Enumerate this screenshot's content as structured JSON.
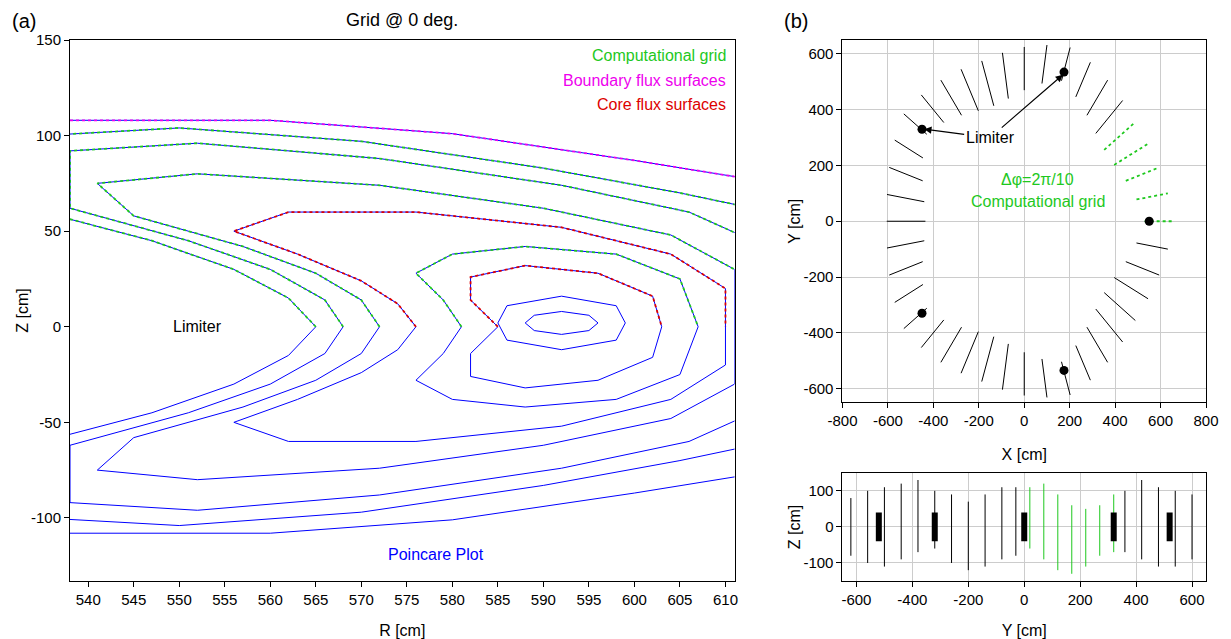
{
  "chart_data": [
    {
      "type": "line",
      "panel_label": "(a)",
      "title": "Grid @ 0 deg.",
      "x_label": "R [cm]",
      "y_label": "Z [cm]",
      "xlim": [
        538,
        611
      ],
      "ylim": [
        -133,
        150
      ],
      "xticks": [
        540,
        545,
        550,
        555,
        560,
        565,
        570,
        575,
        580,
        585,
        590,
        595,
        600,
        605,
        610
      ],
      "yticks": [
        -100,
        -50,
        0,
        50,
        100,
        150
      ],
      "grid": false,
      "series": [
        {
          "name": "Poincare Plot",
          "color": "#0000ff",
          "line_style": "solid",
          "x": [
            538,
            560,
            580,
            600,
            613,
            null,
            538,
            560,
            580,
            600,
            613,
            null,
            565,
            562,
            556,
            547,
            535,
            535,
            550,
            570,
            590,
            605,
            615,
            615,
            605,
            590,
            570,
            550,
            535,
            535,
            547,
            556,
            562,
            565,
            null,
            568,
            566,
            560,
            551,
            538,
            538,
            552,
            572,
            592,
            606,
            613,
            613,
            606,
            592,
            572,
            552,
            538,
            538,
            551,
            560,
            566,
            568,
            null,
            572,
            570,
            565,
            557,
            545,
            541,
            552,
            572,
            590,
            604,
            611,
            611,
            604,
            590,
            572,
            552,
            541,
            545,
            557,
            565,
            570,
            572,
            null,
            576,
            574,
            570,
            563,
            556,
            562,
            576,
            592,
            604,
            610,
            610,
            604,
            592,
            576,
            562,
            556,
            563,
            570,
            574,
            576,
            null,
            607,
            605,
            598,
            588,
            580,
            576,
            579,
            581,
            579,
            576,
            580,
            588,
            598,
            605,
            607,
            null,
            603,
            602,
            596,
            588,
            582,
            582,
            585,
            582,
            582,
            588,
            596,
            602,
            603,
            null,
            599,
            598,
            592,
            586,
            585,
            586,
            592,
            598,
            599,
            null,
            596,
            595,
            592,
            589,
            588,
            589,
            592,
            595,
            596
          ],
          "y": [
            108,
            108,
            101,
            87,
            77,
            null,
            -108,
            -108,
            -101,
            -87,
            -77,
            null,
            0,
            15,
            30,
            45,
            60,
            100,
            104,
            97,
            83,
            70,
            60,
            -60,
            -70,
            -83,
            -97,
            -104,
            -100,
            -60,
            -45,
            -30,
            -15,
            0,
            null,
            0,
            14,
            30,
            45,
            62,
            92,
            96,
            88,
            74,
            60,
            45,
            -45,
            -60,
            -74,
            -88,
            -96,
            -92,
            -62,
            -45,
            -30,
            -14,
            0,
            null,
            0,
            14,
            28,
            42,
            58,
            75,
            80,
            74,
            62,
            48,
            30,
            -30,
            -48,
            -62,
            -74,
            -80,
            -75,
            -58,
            -42,
            -28,
            -14,
            0,
            null,
            0,
            12,
            24,
            38,
            50,
            60,
            60,
            52,
            38,
            20,
            -20,
            -38,
            -52,
            -60,
            -60,
            -50,
            -38,
            -24,
            -12,
            0,
            null,
            0,
            25,
            38,
            42,
            38,
            28,
            14,
            0,
            -14,
            -28,
            -38,
            -42,
            -38,
            -25,
            0,
            null,
            0,
            16,
            28,
            32,
            26,
            14,
            0,
            -14,
            -26,
            -32,
            -28,
            -16,
            0,
            null,
            2,
            11,
            16,
            11,
            2,
            -7,
            -12,
            -7,
            2,
            null,
            2,
            6,
            8,
            6,
            2,
            -2,
            -4,
            -2,
            2
          ]
        },
        {
          "name": "Computational grid",
          "color": "#1ec81e",
          "line_style": "dotted",
          "x": [
            565,
            562,
            556,
            547,
            535,
            535,
            550,
            570,
            590,
            605,
            615,
            null,
            568,
            566,
            560,
            551,
            538,
            538,
            552,
            572,
            592,
            606,
            613,
            null,
            572,
            570,
            565,
            557,
            545,
            541,
            552,
            572,
            590,
            604,
            611,
            null,
            581,
            579,
            576,
            580,
            588,
            598,
            605,
            607
          ],
          "y": [
            0,
            15,
            30,
            45,
            60,
            100,
            104,
            97,
            83,
            70,
            60,
            null,
            0,
            14,
            30,
            45,
            62,
            92,
            96,
            88,
            74,
            60,
            45,
            null,
            0,
            14,
            28,
            42,
            58,
            75,
            80,
            74,
            62,
            48,
            30,
            null,
            0,
            14,
            28,
            38,
            42,
            38,
            25,
            0
          ]
        },
        {
          "name": "Boundary flux surfaces",
          "color": "#ee00ee",
          "line_style": "dotted",
          "x": [
            538,
            560,
            580,
            600,
            613
          ],
          "y": [
            108,
            108,
            101,
            87,
            77
          ]
        },
        {
          "name": "Core flux surfaces",
          "color": "#dd0000",
          "line_style": "dotted",
          "x": [
            576,
            574,
            570,
            563,
            556,
            562,
            576,
            592,
            604,
            610,
            610,
            null,
            585,
            582,
            582,
            588,
            596,
            602,
            603
          ],
          "y": [
            0,
            12,
            24,
            38,
            50,
            60,
            60,
            52,
            38,
            20,
            0,
            null,
            0,
            14,
            26,
            32,
            28,
            16,
            0
          ]
        }
      ],
      "annotations": [
        {
          "text": "Limiter",
          "x": 552,
          "y": 0
        }
      ]
    },
    {
      "type": "line",
      "panel_label": "(b)",
      "x_label": "X [cm]",
      "y_label": "Y [cm]",
      "xlim": [
        -800,
        800
      ],
      "ylim": [
        -650,
        650
      ],
      "xticks": [
        -800,
        -600,
        -400,
        -200,
        0,
        200,
        400,
        600,
        800
      ],
      "yticks": [
        -600,
        -400,
        -200,
        0,
        200,
        400,
        600
      ],
      "grid": true,
      "series": [
        {
          "color": "#000000",
          "line_style": "solid",
          "x": [
            315,
            433,
            null,
            276,
            367,
            null,
            227,
            291,
            null,
            164,
            202,
            null,
            78,
            100,
            null,
            0,
            0,
            null,
            -70,
            -96,
            null,
            -134,
            -187,
            null,
            -202,
            -278,
            null,
            -276,
            -367,
            null,
            -354,
            -453,
            null,
            -429,
            -530,
            null,
            -446,
            -570,
            null,
            -447,
            -594,
            null,
            -440,
            -604,
            null,
            -435,
            -605,
            null,
            -440,
            -604,
            null,
            -447,
            -594,
            null,
            -446,
            -570,
            null,
            -429,
            -530,
            null,
            -354,
            -453,
            null,
            -276,
            -367,
            null,
            -202,
            -278,
            null,
            -134,
            -187,
            null,
            -70,
            -96,
            null,
            0,
            0,
            null,
            78,
            100,
            null,
            164,
            202,
            null,
            227,
            291,
            null,
            276,
            367,
            null,
            315,
            433,
            null,
            352,
            489,
            null,
            396,
            545,
            null,
            447,
            594,
            null,
            494,
            632
          ],
          "y": [
            315,
            433,
            null,
            380,
            506,
            null,
            446,
            570,
            null,
            504,
            623,
            null,
            494,
            632,
            null,
            470,
            625,
            null,
            440,
            604,
            null,
            414,
            575,
            null,
            396,
            545,
            null,
            380,
            506,
            null,
            354,
            453,
            null,
            312,
            385,
            null,
            227,
            291,
            null,
            145,
            193,
            null,
            70,
            96,
            null,
            0,
            0,
            null,
            -70,
            -96,
            null,
            -145,
            -193,
            null,
            -227,
            -291,
            null,
            -312,
            -385,
            null,
            -354,
            -453,
            null,
            -380,
            -506,
            null,
            -396,
            -545,
            null,
            -414,
            -575,
            null,
            -440,
            -604,
            null,
            -470,
            -625,
            null,
            -494,
            -632,
            null,
            -504,
            -623,
            null,
            -446,
            -570,
            null,
            -380,
            -506,
            null,
            -315,
            -433,
            null,
            -256,
            -356,
            null,
            -202,
            -278,
            null,
            -145,
            -193,
            null,
            -78,
            -100
          ]
        },
        {
          "name": "Computational grid",
          "color": "#1ec81e",
          "line_style": "dotted",
          "x": [
            530,
            655,
            null,
            494,
            632,
            null,
            447,
            594,
            null,
            396,
            545,
            null,
            352,
            489
          ],
          "y": [
            0,
            0,
            null,
            78,
            100,
            null,
            145,
            193,
            null,
            202,
            278,
            null,
            256,
            356
          ]
        },
        {
          "color": "#000000",
          "marker": "circle",
          "x": [
            550,
            175,
            -450,
            -450,
            175
          ],
          "y": [
            0,
            535,
            330,
            -330,
            -535
          ]
        }
      ],
      "annotations": [
        {
          "text": "Limiter",
          "x": -150,
          "y": 300,
          "arrows": [
            {
              "x": -440,
              "y": 330
            },
            {
              "x": 170,
              "y": 525
            }
          ]
        },
        {
          "text": "Δφ=2π/10",
          "x": 60,
          "y": 150,
          "color": "#1ec81e"
        },
        {
          "text": "Computational grid",
          "x": 60,
          "y": 70,
          "color": "#1ec81e"
        }
      ]
    },
    {
      "type": "line",
      "x_label": "Y [cm]",
      "y_label": "Z [cm]",
      "xlim": [
        -650,
        650
      ],
      "ylim": [
        -150,
        150
      ],
      "xticks": [
        -600,
        -400,
        -200,
        0,
        200,
        400,
        600
      ],
      "yticks": [
        -100,
        0,
        100
      ],
      "grid": true,
      "series": [
        {
          "color": "#000000",
          "line_style": "solid",
          "x": [
            -620,
            -620,
            null,
            -560,
            -560,
            null,
            -500,
            -500,
            null,
            -440,
            -440,
            null,
            -380,
            -380,
            null,
            -320,
            -320,
            null,
            -260,
            -260,
            null,
            -200,
            -200,
            null,
            -140,
            -140,
            null,
            -80,
            -80,
            null,
            -30,
            -30,
            null,
            360,
            360,
            null,
            420,
            420,
            null,
            480,
            480,
            null,
            540,
            540,
            null,
            600,
            600
          ],
          "y": [
            -80,
            80,
            null,
            -100,
            100,
            null,
            -110,
            110,
            null,
            -90,
            120,
            null,
            -70,
            130,
            null,
            -60,
            100,
            null,
            -100,
            90,
            null,
            -120,
            70,
            null,
            -110,
            90,
            null,
            -90,
            110,
            null,
            -80,
            110,
            null,
            -70,
            100,
            null,
            -90,
            130,
            null,
            -110,
            110,
            null,
            -110,
            100,
            null,
            -90,
            90
          ]
        },
        {
          "color": "#1ec81e",
          "line_style": "solid",
          "x": [
            20,
            20,
            null,
            70,
            70,
            null,
            120,
            120,
            null,
            170,
            170,
            null,
            220,
            220,
            null,
            270,
            270,
            null,
            320,
            320
          ],
          "y": [
            -60,
            110,
            null,
            -90,
            120,
            null,
            -120,
            90,
            null,
            -130,
            60,
            null,
            -110,
            50,
            null,
            -80,
            60,
            null,
            -70,
            90
          ]
        },
        {
          "color": "#000000",
          "line_style": "thick",
          "x": [
            -520,
            -520,
            null,
            -320,
            -320,
            null,
            0,
            0,
            null,
            320,
            320,
            null,
            520,
            520
          ],
          "y": [
            -40,
            40,
            null,
            -40,
            40,
            null,
            -40,
            40,
            null,
            -40,
            40,
            null,
            -40,
            40
          ]
        }
      ]
    }
  ]
}
